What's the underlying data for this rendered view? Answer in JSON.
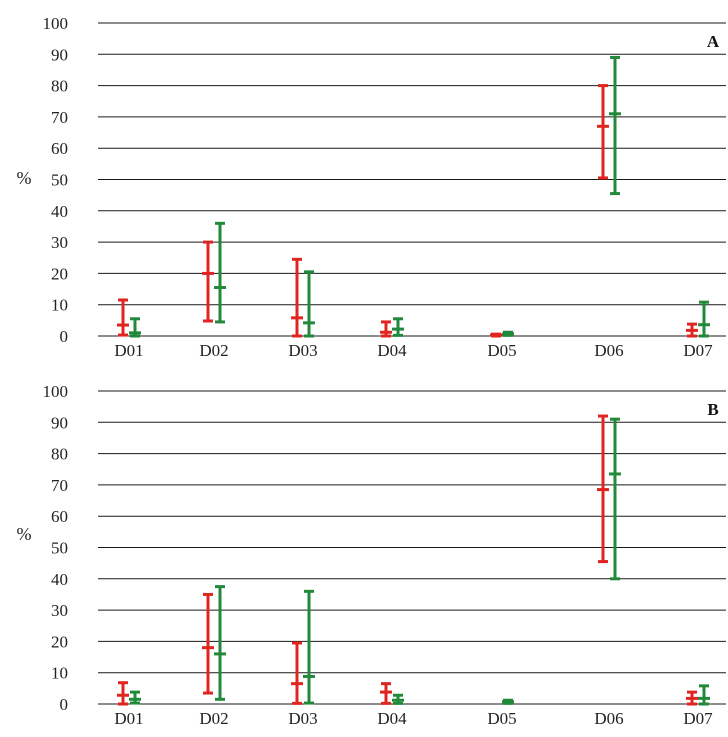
{
  "colors": {
    "series_red": "#e0241f",
    "series_green": "#23893a",
    "grid": "#1a1a1a"
  },
  "chart_data": [
    {
      "type": "error-bar",
      "panel_label": "A",
      "ylabel": "%",
      "ylim": [
        0,
        100
      ],
      "yticks": [
        0,
        10,
        20,
        30,
        40,
        50,
        60,
        70,
        80,
        90,
        100
      ],
      "ytick_labels": [
        "0",
        "10",
        "20",
        "30",
        "40",
        "50",
        "60",
        "70",
        "80",
        "90",
        "100"
      ],
      "categories": [
        "D01",
        "D02",
        "D03",
        "D04",
        "D05",
        "D06",
        "D07"
      ],
      "grid": true,
      "series": [
        {
          "color": "#e0241f",
          "mean": [
            3.5,
            20,
            5.8,
            1.2,
            0.3,
            67,
            1.8
          ],
          "lower": [
            0.3,
            4.8,
            0,
            0,
            0,
            50.5,
            0
          ],
          "upper": [
            11.5,
            30,
            24.5,
            4.5,
            0.6,
            80,
            3.8
          ]
        },
        {
          "color": "#23893a",
          "mean": [
            1,
            15.5,
            4.2,
            2.2,
            0.7,
            71,
            3.6
          ],
          "lower": [
            0,
            4.5,
            0,
            0.2,
            0.2,
            45.5,
            0
          ],
          "upper": [
            5.5,
            36,
            20.5,
            5.5,
            1.2,
            89,
            10.8
          ]
        }
      ]
    },
    {
      "type": "error-bar",
      "panel_label": "B",
      "ylabel": "%",
      "ylim": [
        0,
        100
      ],
      "yticks": [
        0,
        10,
        20,
        30,
        40,
        50,
        60,
        70,
        80,
        90,
        100
      ],
      "ytick_labels": [
        "0",
        "10",
        "20",
        "30",
        "40",
        "50",
        "60",
        "70",
        "80",
        "90",
        "100"
      ],
      "categories": [
        "D01",
        "D02",
        "D03",
        "D04",
        "D05",
        "D06",
        "D07"
      ],
      "grid": true,
      "series": [
        {
          "color": "#e0241f",
          "mean": [
            2.8,
            18,
            6.5,
            3.8,
            0,
            68.5,
            1.8
          ],
          "lower": [
            0,
            3.5,
            0.2,
            0.2,
            0,
            45.5,
            0
          ],
          "upper": [
            6.8,
            35,
            19.5,
            6.5,
            0,
            92,
            3.8
          ]
        },
        {
          "color": "#23893a",
          "mean": [
            1.5,
            16,
            8.8,
            1.2,
            0.7,
            73.5,
            1.8
          ],
          "lower": [
            0.3,
            1.5,
            0.3,
            0.2,
            0.2,
            40,
            0
          ],
          "upper": [
            3.8,
            37.5,
            36,
            2.8,
            1.2,
            91,
            5.8
          ]
        }
      ]
    }
  ]
}
